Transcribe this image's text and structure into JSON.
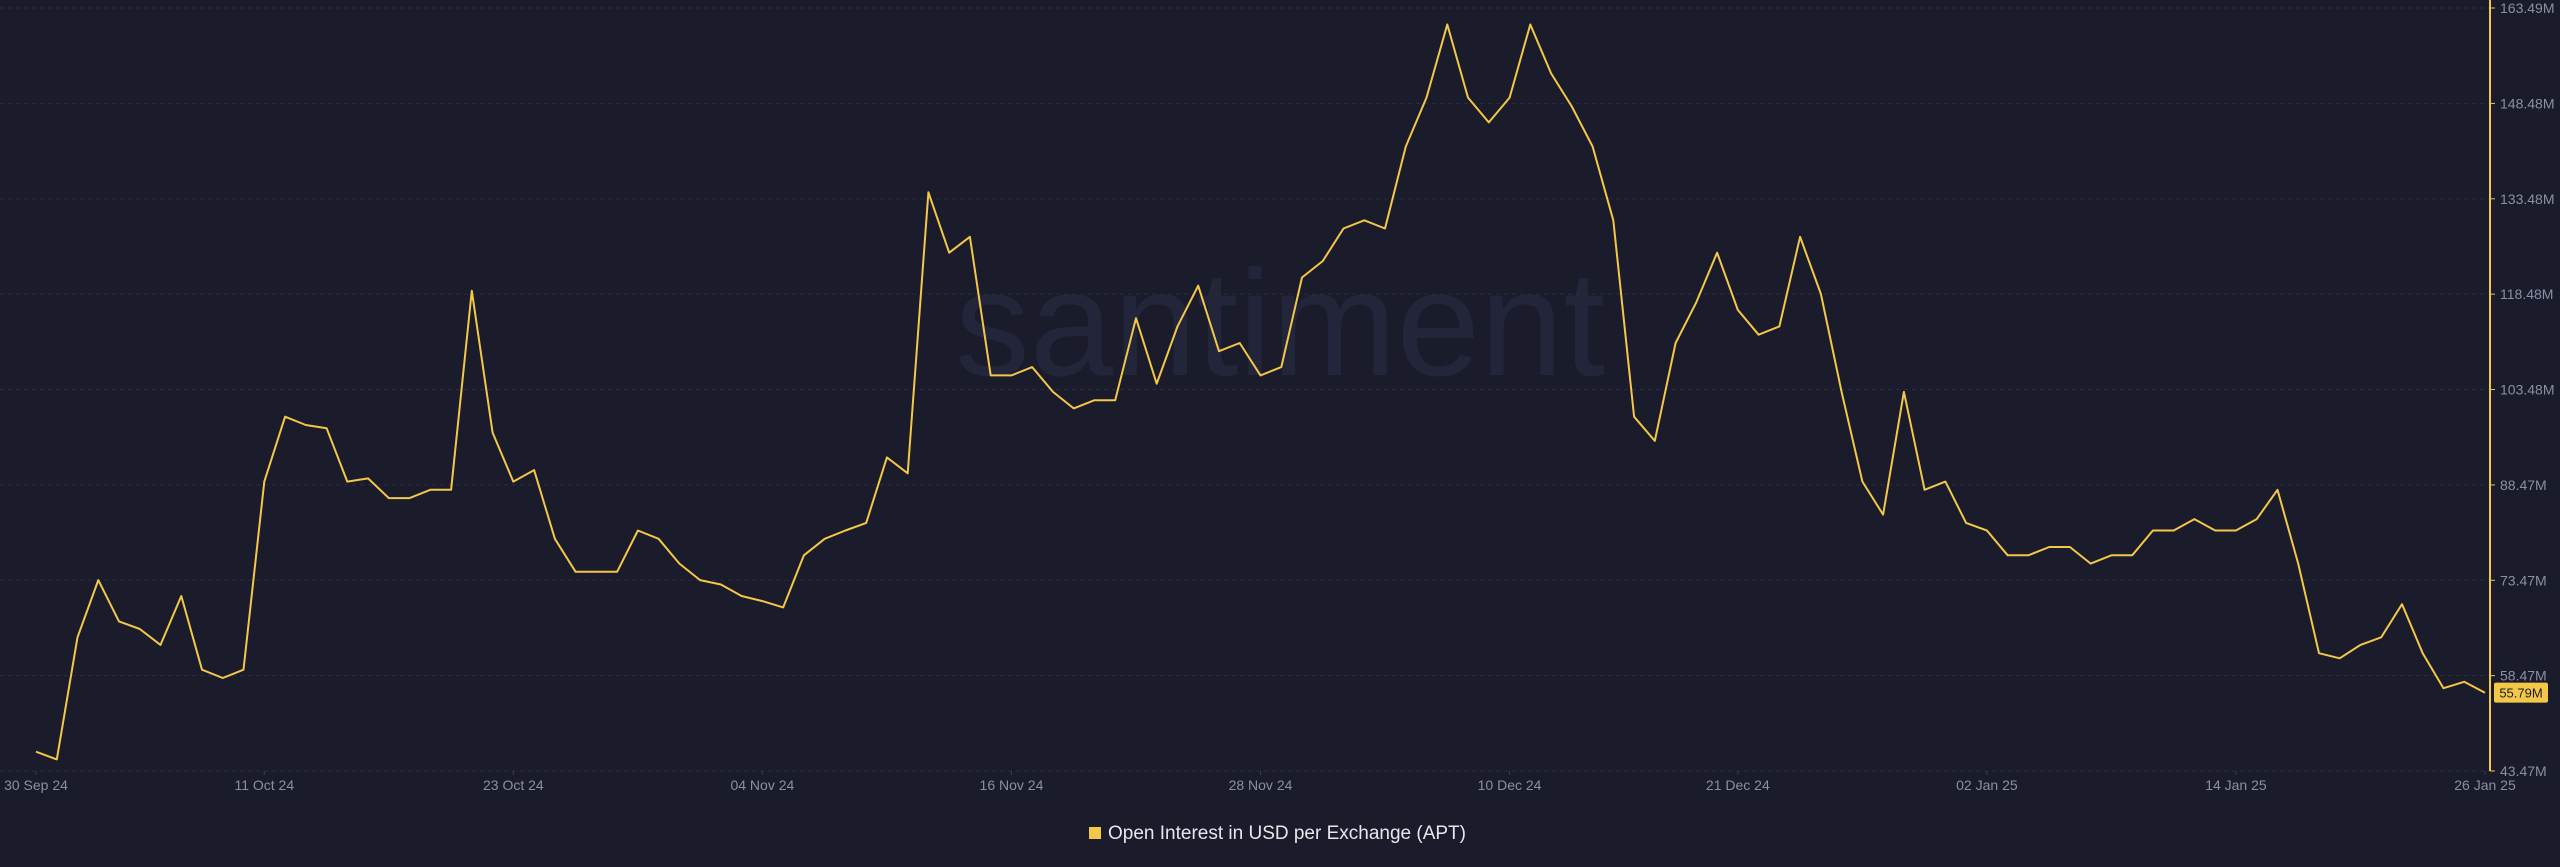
{
  "chart_data": {
    "type": "line",
    "watermark": "santiment",
    "x": [
      "30 Sep 24",
      "01 Oct 24",
      "02 Oct 24",
      "03 Oct 24",
      "04 Oct 24",
      "05 Oct 24",
      "06 Oct 24",
      "07 Oct 24",
      "08 Oct 24",
      "09 Oct 24",
      "10 Oct 24",
      "11 Oct 24",
      "12 Oct 24",
      "13 Oct 24",
      "14 Oct 24",
      "15 Oct 24",
      "16 Oct 24",
      "17 Oct 24",
      "18 Oct 24",
      "19 Oct 24",
      "20 Oct 24",
      "21 Oct 24",
      "22 Oct 24",
      "23 Oct 24",
      "24 Oct 24",
      "25 Oct 24",
      "26 Oct 24",
      "27 Oct 24",
      "28 Oct 24",
      "29 Oct 24",
      "30 Oct 24",
      "31 Oct 24",
      "01 Nov 24",
      "02 Nov 24",
      "03 Nov 24",
      "04 Nov 24",
      "05 Nov 24",
      "06 Nov 24",
      "07 Nov 24",
      "08 Nov 24",
      "09 Nov 24",
      "10 Nov 24",
      "11 Nov 24",
      "12 Nov 24",
      "13 Nov 24",
      "14 Nov 24",
      "15 Nov 24",
      "16 Nov 24",
      "17 Nov 24",
      "18 Nov 24",
      "19 Nov 24",
      "20 Nov 24",
      "21 Nov 24",
      "22 Nov 24",
      "23 Nov 24",
      "24 Nov 24",
      "25 Nov 24",
      "26 Nov 24",
      "27 Nov 24",
      "28 Nov 24",
      "29 Nov 24",
      "30 Nov 24",
      "01 Dec 24",
      "02 Dec 24",
      "03 Dec 24",
      "04 Dec 24",
      "05 Dec 24",
      "06 Dec 24",
      "07 Dec 24",
      "08 Dec 24",
      "09 Dec 24",
      "10 Dec 24",
      "11 Dec 24",
      "12 Dec 24",
      "13 Dec 24",
      "14 Dec 24",
      "15 Dec 24",
      "16 Dec 24",
      "17 Dec 24",
      "18 Dec 24",
      "19 Dec 24",
      "20 Dec 24",
      "21 Dec 24",
      "22 Dec 24",
      "23 Dec 24",
      "24 Dec 24",
      "25 Dec 24",
      "26 Dec 24",
      "27 Dec 24",
      "28 Dec 24",
      "29 Dec 24",
      "30 Dec 24",
      "31 Dec 24",
      "01 Jan 25",
      "02 Jan 25",
      "03 Jan 25",
      "04 Jan 25",
      "05 Jan 25",
      "06 Jan 25",
      "07 Jan 25",
      "08 Jan 25",
      "09 Jan 25",
      "10 Jan 25",
      "11 Jan 25",
      "12 Jan 25",
      "13 Jan 25",
      "14 Jan 25",
      "15 Jan 25",
      "16 Jan 25",
      "17 Jan 25",
      "18 Jan 25",
      "19 Jan 25",
      "20 Jan 25",
      "21 Jan 25",
      "22 Jan 25",
      "23 Jan 25",
      "24 Jan 25",
      "25 Jan 25",
      "26 Jan 25"
    ],
    "series": [
      {
        "name": "Open Interest in USD per Exchange (APT)",
        "color": "#f3c747",
        "values": [
          46.5,
          45.3,
          64.5,
          73.5,
          67,
          65.8,
          63.3,
          71,
          59.4,
          58.1,
          59.4,
          89,
          99.2,
          97.9,
          97.4,
          89,
          89.5,
          86.4,
          86.4,
          87.7,
          87.7,
          119,
          96.7,
          89,
          90.8,
          80,
          74.8,
          74.8,
          74.8,
          81.3,
          80,
          76.1,
          73.5,
          72.8,
          71,
          70.2,
          69.2,
          77.4,
          80,
          81.3,
          82.5,
          92.8,
          90.3,
          134.5,
          125,
          127.5,
          105.7,
          105.7,
          107,
          103.1,
          100.5,
          101.8,
          101.8,
          114.7,
          104.4,
          113.4,
          119.8,
          109.5,
          110.8,
          105.7,
          107,
          121.1,
          123.7,
          128.8,
          130.1,
          128.8,
          141.7,
          149.4,
          160.9,
          149.4,
          145.5,
          149.4,
          160.9,
          153.2,
          148,
          141.7,
          130.1,
          99.2,
          95.4,
          110.8,
          117.2,
          125,
          116,
          112.1,
          113.4,
          127.5,
          118.5,
          103.1,
          89,
          83.8,
          103.1,
          87.7,
          89,
          82.5,
          81.3,
          77.4,
          77.4,
          78.7,
          78.7,
          76.1,
          77.4,
          77.4,
          81.3,
          81.3,
          83.1,
          81.3,
          81.3,
          83.1,
          87.7,
          76.1,
          62,
          61.2,
          63.3,
          64.5,
          69.7,
          62,
          56.5,
          57.5,
          55.79
        ],
        "value_labels": [
          null,
          null,
          null,
          null,
          null,
          null,
          null,
          null,
          null,
          null,
          null,
          null,
          null,
          null,
          null,
          null,
          null,
          null,
          null,
          null,
          null,
          null,
          null,
          null,
          null,
          null,
          null,
          null,
          null,
          null,
          null,
          null,
          null,
          null,
          null,
          null,
          null,
          null,
          null,
          null,
          null,
          null,
          null,
          null,
          null,
          null,
          null,
          null,
          null,
          null,
          null,
          null,
          null,
          null,
          null,
          null,
          null,
          null,
          null,
          null,
          null,
          null,
          null,
          null,
          null,
          null,
          null,
          null,
          null,
          null,
          null,
          null,
          null,
          null,
          null,
          null,
          null,
          null,
          null,
          null,
          null,
          null,
          null,
          null,
          null,
          null,
          null,
          null,
          null,
          null,
          null,
          null,
          null,
          null,
          null,
          null,
          null,
          null,
          null,
          null,
          null,
          null,
          null,
          null,
          null,
          null,
          null,
          null,
          null,
          null,
          null,
          null,
          null,
          null,
          null,
          null,
          null,
          null,
          "55.79M"
        ]
      }
    ],
    "xticks": [
      "30 Sep 24",
      "11 Oct 24",
      "23 Oct 24",
      "04 Nov 24",
      "16 Nov 24",
      "28 Nov 24",
      "10 Dec 24",
      "21 Dec 24",
      "02 Jan 25",
      "14 Jan 25",
      "26 Jan 25"
    ],
    "ylim": [
      43.47,
      163.49
    ],
    "yticks": [
      {
        "value": 43.47,
        "label": "43.47M"
      },
      {
        "value": 58.47,
        "label": "58.47M"
      },
      {
        "value": 73.47,
        "label": "73.47M"
      },
      {
        "value": 88.47,
        "label": "88.47M"
      },
      {
        "value": 103.48,
        "label": "103.48M"
      },
      {
        "value": 118.48,
        "label": "118.48M"
      },
      {
        "value": 133.48,
        "label": "133.48M"
      },
      {
        "value": 148.48,
        "label": "148.48M"
      },
      {
        "value": 163.49,
        "label": "163.49M"
      }
    ],
    "grid": true,
    "legend": "bottom"
  }
}
